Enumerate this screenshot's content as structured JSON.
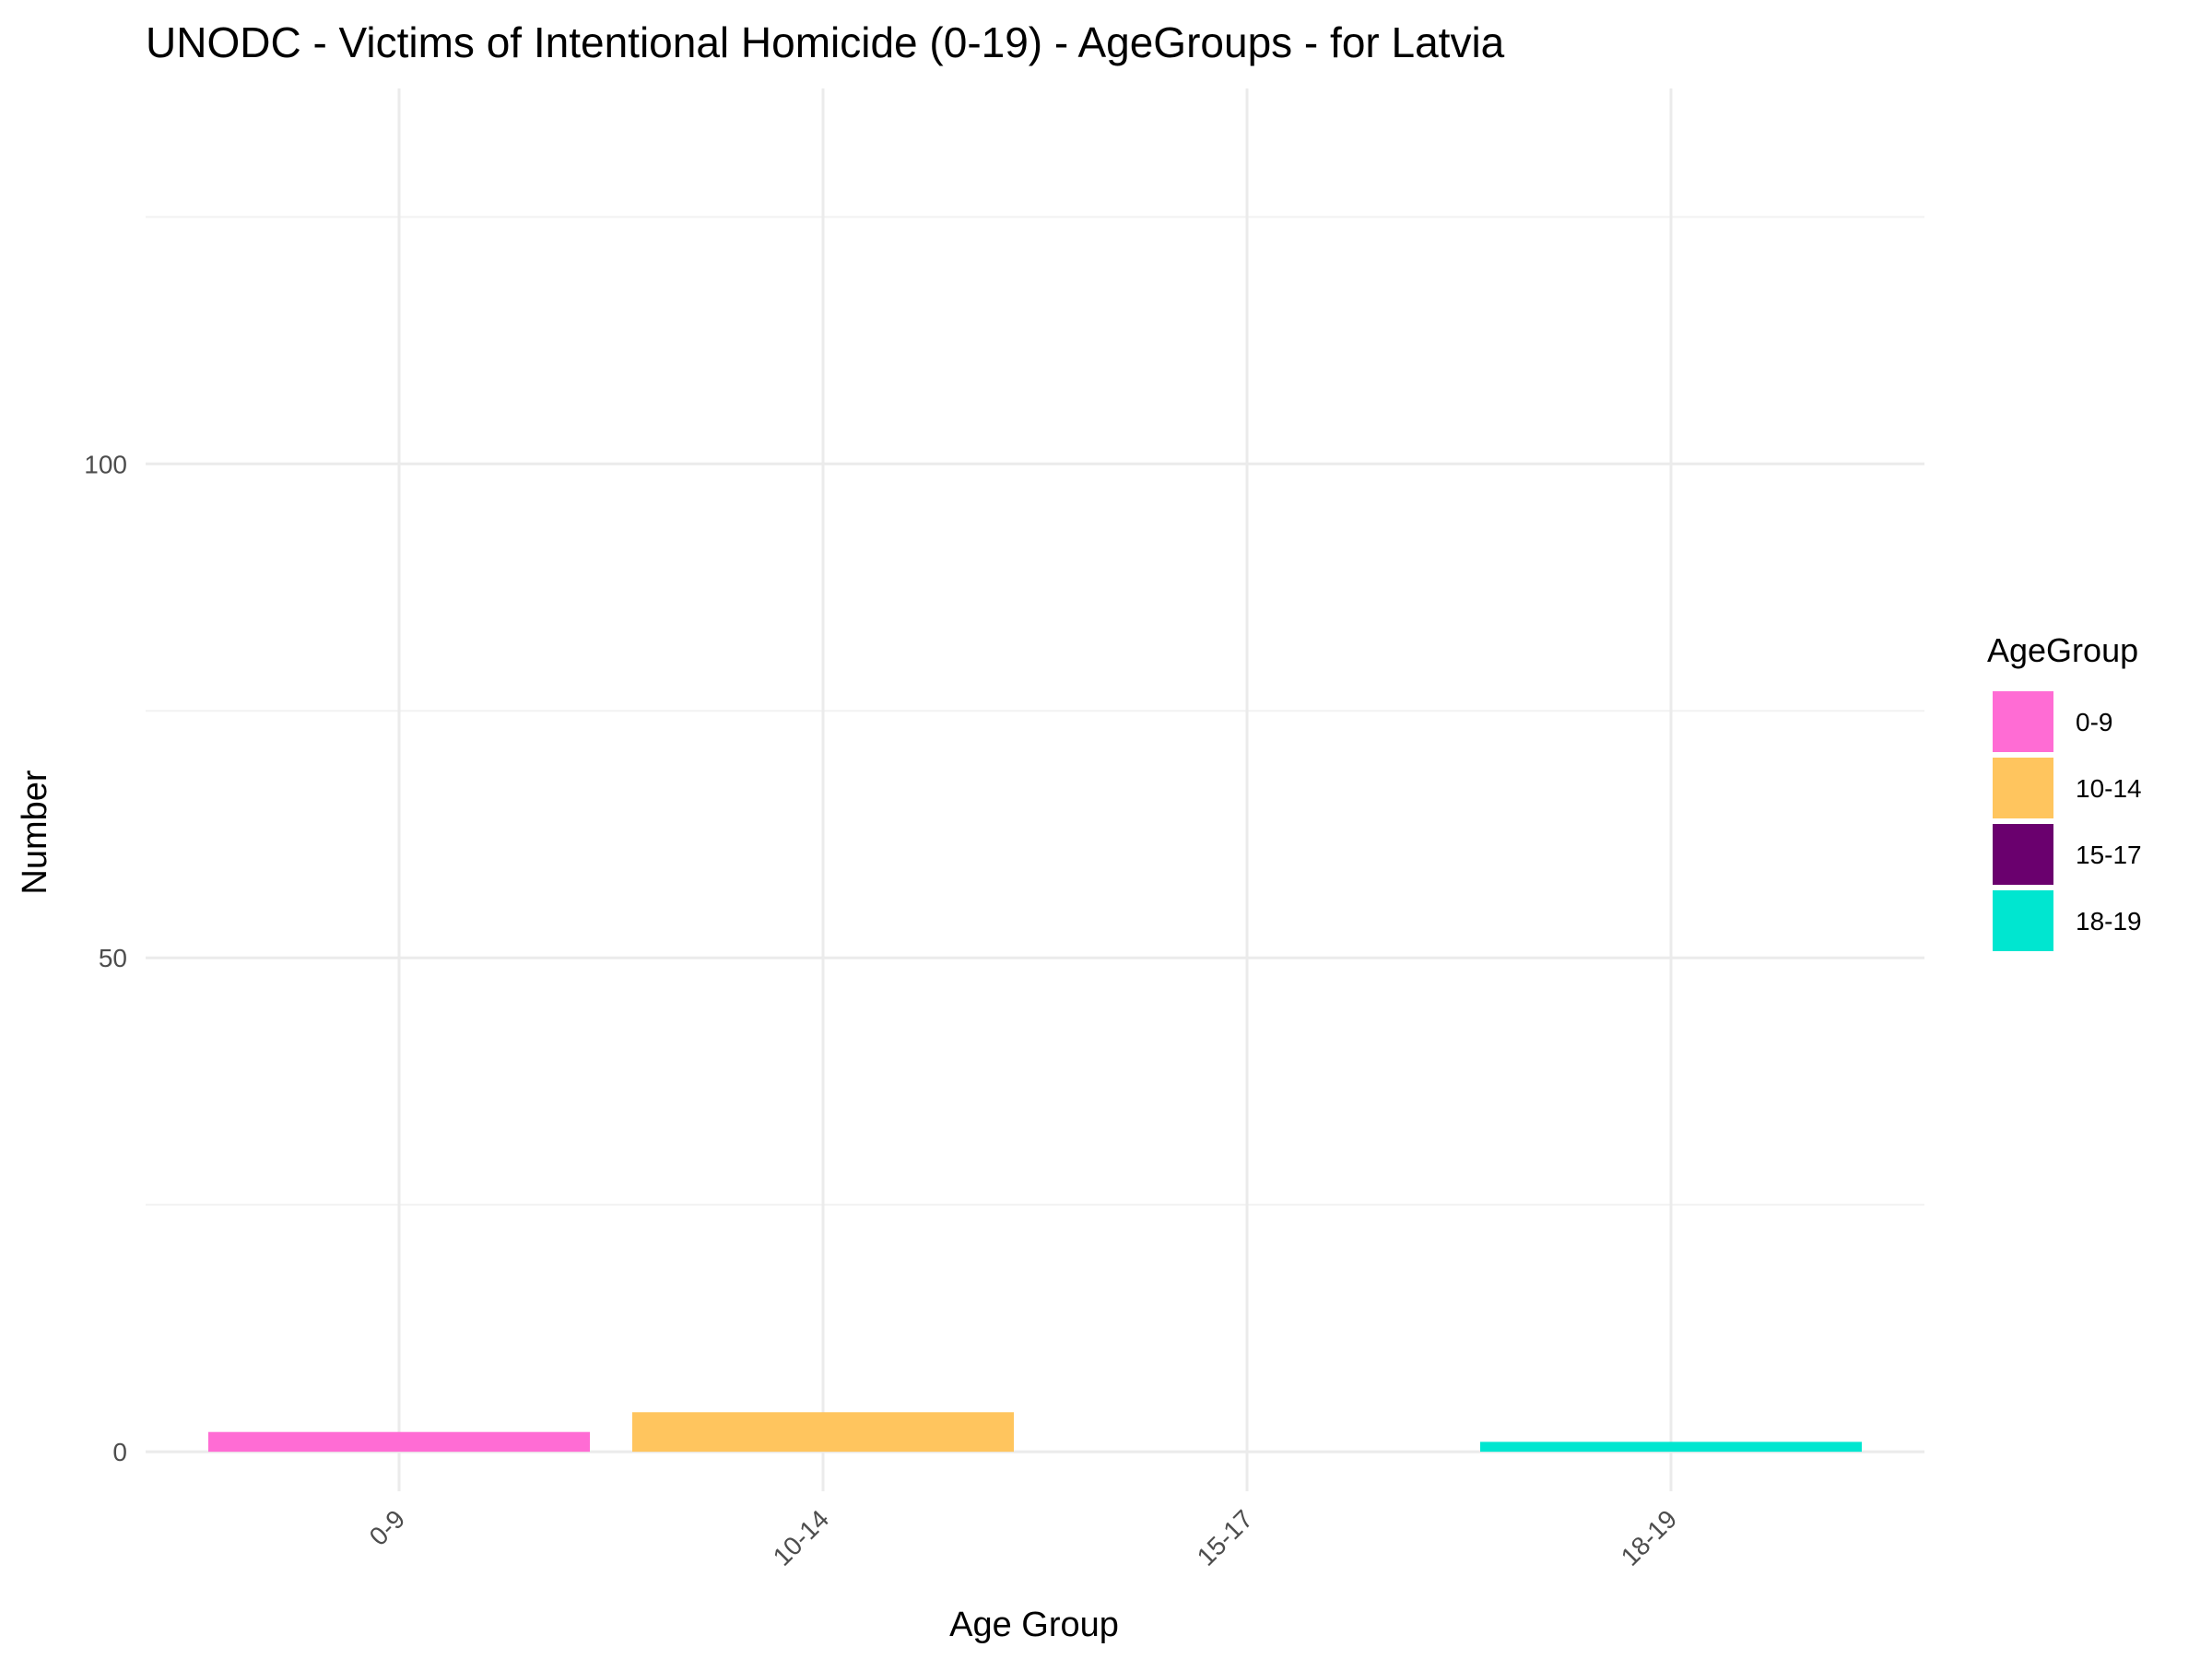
{
  "chart_data": {
    "type": "bar",
    "title": "UNODC - Victims of Intentional Homicide (0-19) - AgeGroups - for Latvia",
    "xlabel": "Age Group",
    "ylabel": "Number",
    "categories": [
      "0-9",
      "10-14",
      "15-17",
      "18-19"
    ],
    "values": [
      2,
      4,
      0,
      1
    ],
    "ylim": [
      -4,
      138
    ],
    "yticks": [
      0,
      50,
      100
    ],
    "yminor": [
      25,
      75,
      125
    ],
    "grid": true,
    "x_tick_rotation": 45,
    "legend": {
      "title": "AgeGroup",
      "position": "right",
      "items": [
        {
          "label": "0-9",
          "color": "#FF6CD4"
        },
        {
          "label": "10-14",
          "color": "#FFC55E"
        },
        {
          "label": "15-17",
          "color": "#6A006E"
        },
        {
          "label": "18-19",
          "color": "#00E6D0"
        }
      ]
    }
  }
}
